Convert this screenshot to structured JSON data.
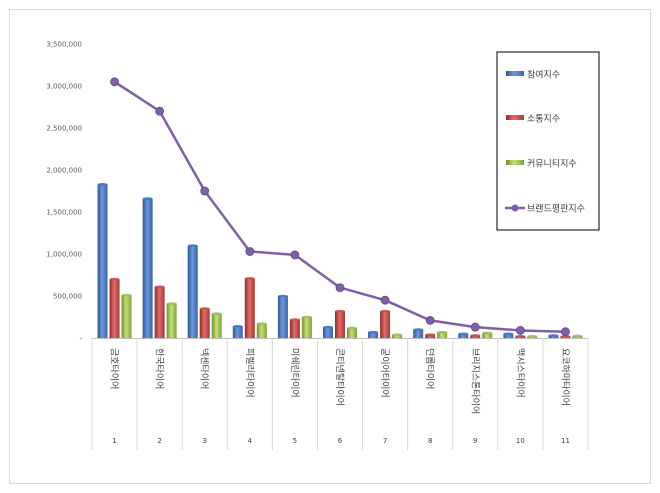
{
  "chart_data": {
    "type": "bar",
    "title": "",
    "xlabel": "",
    "ylabel": "",
    "ylim": [
      0,
      3500000
    ],
    "yticks": [
      "-",
      "500,000",
      "1,000,000",
      "1,500,000",
      "2,000,000",
      "2,500,000",
      "3,000,000",
      "3,500,000"
    ],
    "grid": false,
    "legend_position": "right",
    "categories": [
      "금호타이어",
      "한국타이어",
      "넥센타이어",
      "피렐리타이어",
      "미쉐린타이어",
      "콘티넨탈타이어",
      "굳이어타이어",
      "던롭타이어",
      "브리지스톤타이어",
      "맥시스타이어",
      "요코하마타이어"
    ],
    "ranks": [
      "1",
      "2",
      "3",
      "4",
      "5",
      "6",
      "7",
      "8",
      "9",
      "10",
      "11"
    ],
    "series": [
      {
        "name": "참여지수",
        "kind": "bar",
        "color": "#4472c4",
        "values": [
          1830000,
          1660000,
          1100000,
          140000,
          500000,
          130000,
          70000,
          100000,
          50000,
          50000,
          30000
        ]
      },
      {
        "name": "소통지수",
        "kind": "bar",
        "color": "#c0504d",
        "values": [
          700000,
          610000,
          350000,
          710000,
          220000,
          320000,
          320000,
          40000,
          30000,
          20000,
          20000
        ]
      },
      {
        "name": "커뮤니티지수",
        "kind": "bar",
        "color": "#9bbb59",
        "values": [
          510000,
          410000,
          290000,
          170000,
          250000,
          120000,
          40000,
          70000,
          60000,
          20000,
          25000
        ]
      },
      {
        "name": "브랜드평판지수",
        "kind": "line",
        "color": "#7f5fa8",
        "values": [
          3050000,
          2700000,
          1750000,
          1030000,
          990000,
          600000,
          450000,
          210000,
          130000,
          90000,
          75000
        ]
      }
    ]
  }
}
